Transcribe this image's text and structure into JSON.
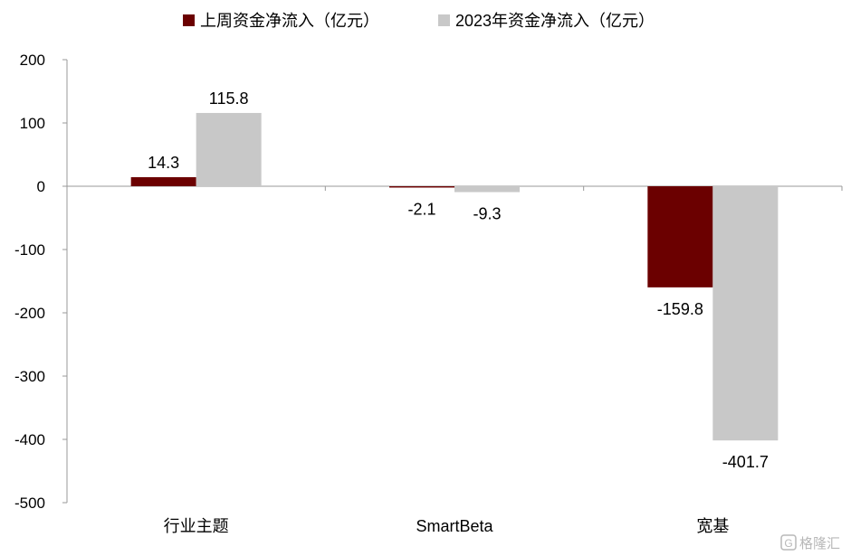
{
  "chart_data": {
    "type": "bar",
    "categories": [
      "行业主题",
      "SmartBeta",
      "宽基"
    ],
    "series": [
      {
        "name": "上周资金净流入（亿元）",
        "values": [
          14.3,
          -2.1,
          -159.8
        ],
        "color": "#6b0000"
      },
      {
        "name": "2023年资金净流入（亿元）",
        "values": [
          115.8,
          -9.3,
          -401.7
        ],
        "color": "#c8c8c8"
      }
    ],
    "data_labels": [
      [
        "14.3",
        "-2.1",
        "-159.8"
      ],
      [
        "115.8",
        "-9.3",
        "-401.7"
      ]
    ],
    "yticks": [
      "200",
      "100",
      "0",
      "-100",
      "-200",
      "-300",
      "-400",
      "-500"
    ],
    "ylim": [
      -500,
      200
    ],
    "legend_position": "top",
    "grid": false
  },
  "watermark": {
    "text": "格隆汇",
    "icon": "g-logo-icon"
  }
}
